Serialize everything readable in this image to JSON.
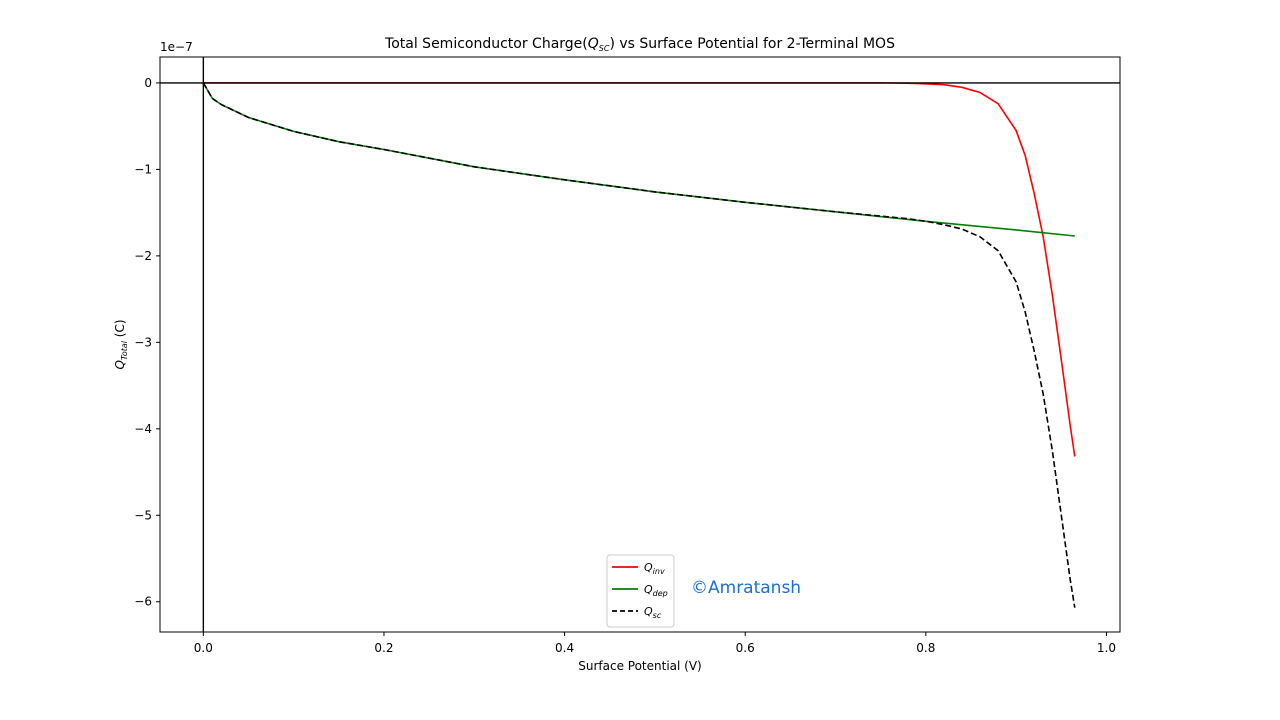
{
  "chart_data": {
    "type": "line",
    "title": {
      "main": "Total Semiconductor Charge(",
      "var": "Q",
      "sub": "SC",
      "rest": ")  vs  Surface Potential for 2-Terminal MOS"
    },
    "xlabel": "Surface Potential (V)",
    "ylabel": {
      "var": "Q",
      "sub": "Total",
      "rest": " (C)"
    },
    "offset_text": "1e−7",
    "xlim": [
      -0.048,
      1.015
    ],
    "ylim": [
      -6.35,
      0.3
    ],
    "xticks": [
      0.0,
      0.2,
      0.4,
      0.6,
      0.8,
      1.0
    ],
    "xtick_labels": [
      "0.0",
      "0.2",
      "0.4",
      "0.6",
      "0.8",
      "1.0"
    ],
    "yticks": [
      0,
      -1,
      -2,
      -3,
      -4,
      -5,
      -6
    ],
    "ytick_labels": [
      "0",
      "−1",
      "−2",
      "−3",
      "−4",
      "−5",
      "−6"
    ],
    "reference_lines": {
      "x": 0,
      "y": 0
    },
    "legend_position": "lower-center",
    "series": [
      {
        "name": {
          "var": "Q",
          "sub": "inv"
        },
        "color": "#ff0000",
        "dash": "solid",
        "x": [
          0.0,
          0.1,
          0.2,
          0.3,
          0.4,
          0.5,
          0.6,
          0.7,
          0.75,
          0.78,
          0.8,
          0.82,
          0.84,
          0.86,
          0.88,
          0.9,
          0.91,
          0.92,
          0.93,
          0.94,
          0.95,
          0.96,
          0.965
        ],
        "y": [
          0,
          0,
          0,
          0,
          0,
          0,
          0,
          0,
          0,
          -0.003,
          -0.01,
          -0.02,
          -0.05,
          -0.11,
          -0.24,
          -0.55,
          -0.84,
          -1.28,
          -1.78,
          -2.45,
          -3.2,
          -3.97,
          -4.32
        ]
      },
      {
        "name": {
          "var": "Q",
          "sub": "dep"
        },
        "color": "#008000",
        "dash": "solid",
        "x": [
          0.0,
          0.01,
          0.02,
          0.05,
          0.1,
          0.15,
          0.2,
          0.3,
          0.4,
          0.5,
          0.6,
          0.7,
          0.8,
          0.9,
          0.965
        ],
        "y": [
          0,
          -0.18,
          -0.25,
          -0.4,
          -0.56,
          -0.68,
          -0.77,
          -0.97,
          -1.12,
          -1.26,
          -1.38,
          -1.49,
          -1.6,
          -1.7,
          -1.77
        ]
      },
      {
        "name": {
          "var": "Q",
          "sub": "sc"
        },
        "color": "#000000",
        "dash": "dashed",
        "x": [
          0.0,
          0.01,
          0.02,
          0.05,
          0.1,
          0.15,
          0.2,
          0.3,
          0.4,
          0.5,
          0.6,
          0.7,
          0.75,
          0.78,
          0.8,
          0.82,
          0.84,
          0.86,
          0.88,
          0.9,
          0.91,
          0.92,
          0.93,
          0.94,
          0.95,
          0.96,
          0.965
        ],
        "y": [
          0,
          -0.18,
          -0.25,
          -0.4,
          -0.56,
          -0.68,
          -0.77,
          -0.97,
          -1.12,
          -1.26,
          -1.38,
          -1.49,
          -1.54,
          -1.57,
          -1.6,
          -1.64,
          -1.69,
          -1.78,
          -1.94,
          -2.3,
          -2.65,
          -3.1,
          -3.6,
          -4.25,
          -5.0,
          -5.75,
          -6.07
        ]
      }
    ]
  },
  "watermark": "©Amratansh"
}
